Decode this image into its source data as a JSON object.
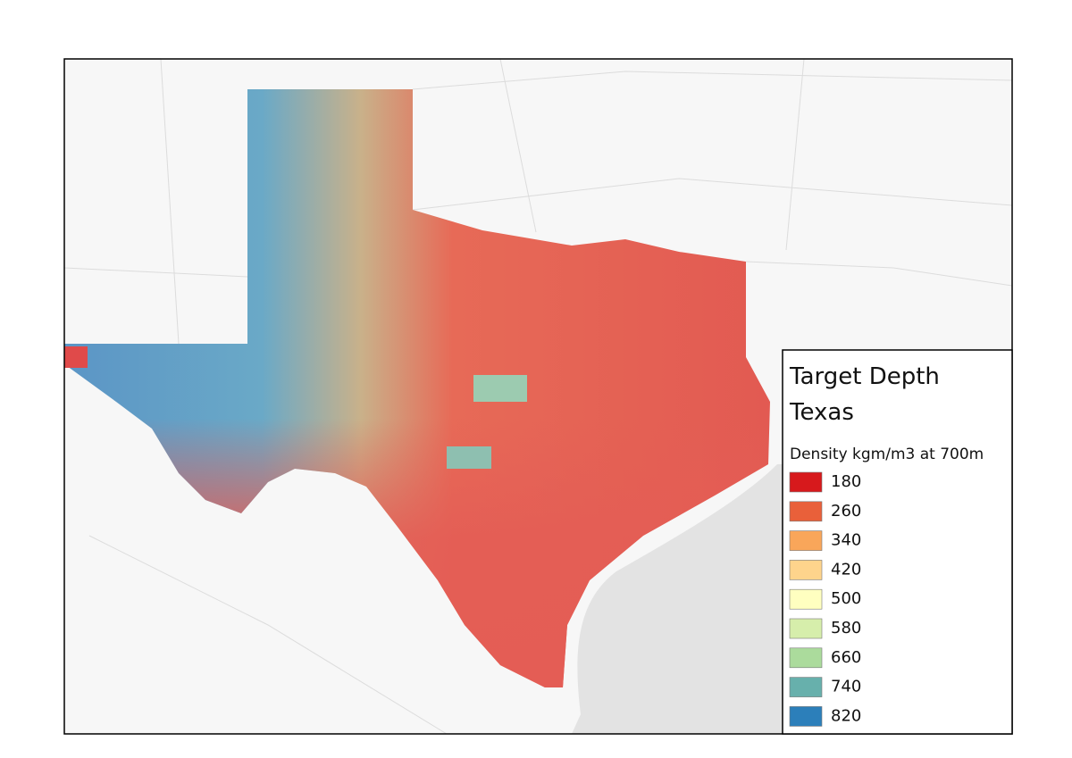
{
  "title": "Target Depth",
  "subtitle": "Texas",
  "legend": {
    "title": "Density kgm/m3 at 700m",
    "items": [
      {
        "label": "180",
        "color": "#d7191c"
      },
      {
        "label": "260",
        "color": "#e9603a"
      },
      {
        "label": "340",
        "color": "#f9a65a"
      },
      {
        "label": "420",
        "color": "#fed48c"
      },
      {
        "label": "500",
        "color": "#ffffc0"
      },
      {
        "label": "580",
        "color": "#d6eeab"
      },
      {
        "label": "660",
        "color": "#abdb9c"
      },
      {
        "label": "740",
        "color": "#67b0ac"
      },
      {
        "label": "820",
        "color": "#2c7fba"
      }
    ]
  }
}
